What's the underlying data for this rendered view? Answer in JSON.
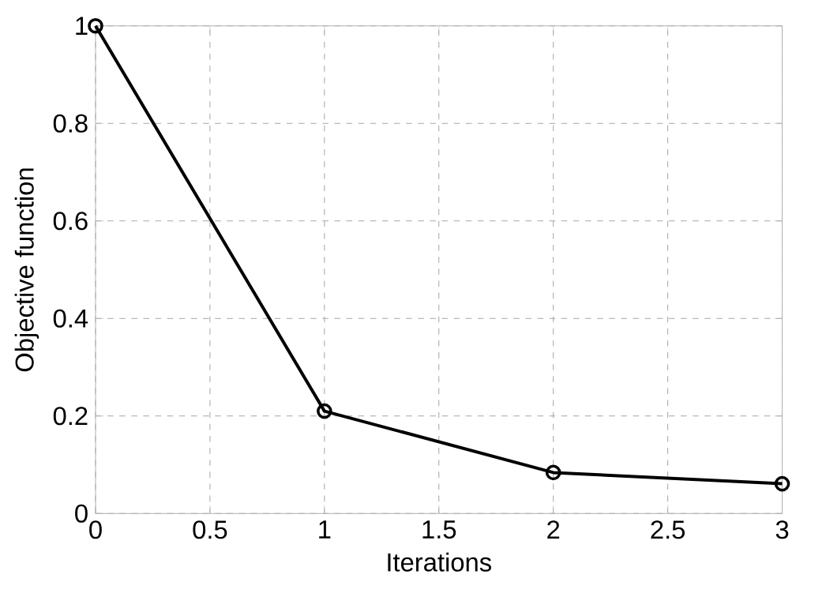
{
  "chart_data": {
    "type": "line",
    "xlabel": "Iterations",
    "ylabel": "Objective function",
    "x": [
      0,
      1,
      2,
      3
    ],
    "series": [
      {
        "color": "#000000",
        "values": [
          1,
          0.21,
          0.084,
          0.061
        ]
      }
    ],
    "xlim": [
      0,
      3
    ],
    "ylim": [
      0,
      1
    ],
    "xticks": [
      0,
      0.5,
      1,
      1.5,
      2,
      2.5,
      3
    ],
    "yticks": [
      0,
      0.2,
      0.4,
      0.6,
      0.8,
      1
    ],
    "grid": true,
    "marker": "circle",
    "line_style": "solid"
  }
}
